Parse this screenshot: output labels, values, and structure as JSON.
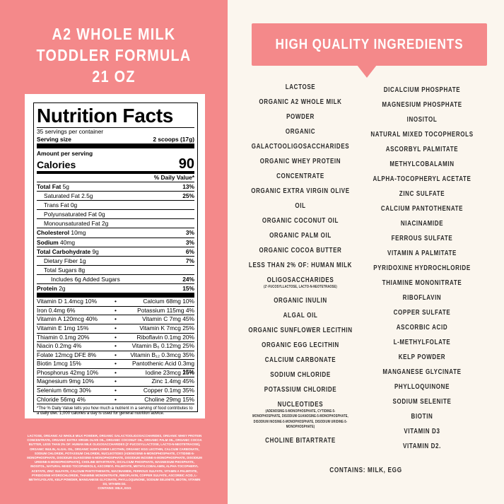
{
  "product_title": [
    "A2 WHOLE MILK",
    "TODDLER FORMULA",
    "21 OZ"
  ],
  "nutrition": {
    "title": "Nutrition Facts",
    "servings": "35 servings per container",
    "serving_size_label": "Serving size",
    "serving_size": "2 scoops (17g)",
    "amount_per_serving": "Amount per serving",
    "calories_label": "Calories",
    "calories": "90",
    "dv_header": "% Daily Value*",
    "rows": [
      {
        "name": "Total Fat",
        "amount": "5g",
        "dv": "13%"
      },
      {
        "name": "Saturated Fat",
        "amount": "2.5g",
        "dv": "25%"
      },
      {
        "name": "Trans Fat",
        "amount": "0g"
      },
      {
        "name": "Polyunsaturated Fat",
        "amount": "0g"
      },
      {
        "name": "Monounsaturated Fat",
        "amount": "2g"
      },
      {
        "name": "Cholesterol",
        "amount": "10mg",
        "dv": "3%"
      },
      {
        "name": "Sodium",
        "amount": "40mg",
        "dv": "3%"
      },
      {
        "name": "Total Carbohydrate",
        "amount": "9g",
        "dv": "6%"
      },
      {
        "name": "Dietary Fiber",
        "amount": "1g",
        "dv": "7%"
      },
      {
        "name": "Total Sugars",
        "amount": "8g"
      },
      {
        "name": "Includes 6g Added Sugars",
        "dv": "24%"
      },
      {
        "name": "Protein",
        "amount": "2g",
        "dv": "15%"
      }
    ],
    "micros": [
      [
        "Vitamin D 1.4mcg 10%",
        "Calcium 68mg 10%"
      ],
      [
        "Iron 0.4mg 6%",
        "Potassium 115mg 4%"
      ],
      [
        "Vitamin A 120mcg 40%",
        "Vitamin C 7mg 45%"
      ],
      [
        "Vitamin E 1mg 15%",
        "Vitamin K 7mcg 25%"
      ],
      [
        "Thiamin 0.1mg 20%",
        "Riboflavin 0.1mg 20%"
      ],
      [
        "Niacin 0.2mg 4%",
        "Vitamin B₆ 0.12mg 25%"
      ],
      [
        "Folate 12mcg DFE 8%",
        "Vitamin B₁₂ 0.3mcg 35%"
      ],
      [
        "Biotin 1mcg 15%",
        "Pantothenic Acid 0.3mg 15%"
      ],
      [
        "Phosphorus 42mg 10%",
        "Iodine 23mcg 25%"
      ],
      [
        "Magnesium 9mg 10%",
        "Zinc 1.4mg 45%"
      ],
      [
        "Selenium 6mcg 30%",
        "Copper 0.1mg 35%"
      ],
      [
        "Chloride 56mg 4%",
        "Choline 29mg 15%"
      ]
    ],
    "bullet": "•",
    "footnote": "*The % Daily Value tells you how much a nutrient in a serving of food contributes to a daily diet. 1,000 calories a day is used for general nutrition advice."
  },
  "fine_print": {
    "ingredients": "LACTOSE, ORGANIC A2 WHOLE MILK POWDER, ORGANIC GALACTOOLIGOSACCHARIDES, ORGANIC WHEY PROTEIN CONCENTRATE, ORGANIC EXTRA VIRGIN OLIVE OIL, ORGANIC COCONUT OIL, ORGANIC PALM OIL, ORGANIC COCOA BUTTER, LESS THAN 2% OF: HUMAN MILK OLIGOSACCHARIDES (2'-FUCOSYLLACTOSE, LACTO-N-NEOTETRAOSE), ORGANIC INULIN, ALGAL OIL, ORGANIC SUNFLOWER LECITHIN, ORGANIC EGG LECITHIN, CALCIUM CARBONATE, SODIUM CHLORIDE, POTASSIUM CHLORIDE, NUCLEOTIDES (ADENOSINE-5-MONOPHOSPHATE, CYTIDINE-5-MONOPHOSPHATE, DISODIUM GUANOSINE-5-MONOPHOSPHATE, DISODIUM INOSINE-5-MONOPHOSPHATE, DISODIUM URIDINE-5-MONOPHOSPHATE), CHOLINE BITARTRATE, DICALCIUM PHOSPHATE, MAGNESIUM PHOSPHATE, INOSITOL, NATURAL MIXED TOCOPHEROLS, ASCORBYL PALMITATE, METHYLCOBALAMIN, ALPHA-TOCOPHERYL ACETATE, ZINC SULFATE, CALCIUM PANTOTHENATE, NIACINAMIDE, FERROUS SULFATE, VITAMIN A PALMITATE, PYRIDOXINE HYDROCHLORIDE, THIAMINE MONONITRATE, RIBOFLAVIN, COPPER SULFATE, ASCORBIC ACID, L-METHYLFOLATE, KELP POWDER, MANGANESE GLYCINATE, PHYLLOQUINONE, SODIUM SELENITE, BIOTIN, VITAMIN D3, VITAMIN D2.",
    "contains": "CONTAINS: MILK, EGG"
  },
  "ingredients_panel": {
    "heading": "HIGH QUALITY INGREDIENTS",
    "left_column": [
      {
        "lines": [
          "LACTOSE"
        ]
      },
      {
        "lines": [
          "ORGANIC A2 WHOLE MILK",
          "POWDER"
        ]
      },
      {
        "lines": [
          "ORGANIC",
          "GALACTOOLIGOSACCHARIDES"
        ]
      },
      {
        "lines": [
          "ORGANIC WHEY PROTEIN",
          "CONCENTRATE"
        ]
      },
      {
        "lines": [
          "ORGANIC EXTRA VIRGIN OLIVE",
          "OIL"
        ]
      },
      {
        "lines": [
          "ORGANIC COCONUT OIL"
        ]
      },
      {
        "lines": [
          "ORGANIC PALM OIL"
        ]
      },
      {
        "lines": [
          "ORGANIC COCOA BUTTER"
        ]
      },
      {
        "lines": [
          "LESS THAN 2% OF: HUMAN MILK",
          "OLIGOSACCHARIDES"
        ],
        "note": "(2'-FUCOSYLLACTOSE, LACTO-N-NEOTETRAOSE)"
      },
      {
        "lines": [
          "ORGANIC INULIN"
        ]
      },
      {
        "lines": [
          "ALGAL OIL"
        ]
      },
      {
        "lines": [
          "ORGANIC SUNFLOWER LECITHIN"
        ]
      },
      {
        "lines": [
          "ORGANIC EGG LECITHIN"
        ]
      },
      {
        "lines": [
          "CALCIUM CARBONATE"
        ]
      },
      {
        "lines": [
          "SODIUM CHLORIDE"
        ]
      },
      {
        "lines": [
          "POTASSIUM CHLORIDE"
        ]
      },
      {
        "lines": [
          "NUCLEOTIDES"
        ],
        "note": "(ADENOSINE-5-MONOPHOSPHATE, CYTIDINE-5-MONOPHOSPHATE, DISODIUM GUANOSINE-5-MONOPHOSPHATE, DISODIUM INOSINE-5-MONOPHOSPHATE, DISODIUM URIDINE-5-MONOPHOSPHATE)"
      },
      {
        "lines": [
          "CHOLINE BITARTRATE"
        ]
      }
    ],
    "right_column": [
      "DICALCIUM PHOSPHATE",
      "MAGNESIUM PHOSPHATE",
      "INOSITOL",
      "NATURAL MIXED TOCOPHEROLS",
      "ASCORBYL PALMITATE",
      "METHYLCOBALAMIN",
      "ALPHA-TOCOPHERYL ACETATE",
      "ZINC SULFATE",
      "CALCIUM PANTOTHENATE",
      "NIACINAMIDE",
      "FERROUS SULFATE",
      "VITAMIN A PALMITATE",
      "PYRIDOXINE HYDROCHLORIDE",
      "THIAMINE MONONITRATE",
      "RIBOFLAVIN",
      "COPPER SULFATE",
      "ASCORBIC ACID",
      "L-METHYLFOLATE",
      "KELP POWDER",
      "MANGANESE GLYCINATE",
      "PHYLLOQUINONE",
      "SODIUM SELENITE",
      "BIOTIN",
      "VITAMIN D3",
      "VITAMIN D2."
    ],
    "contains": "CONTAINS: MILK, EGG"
  }
}
